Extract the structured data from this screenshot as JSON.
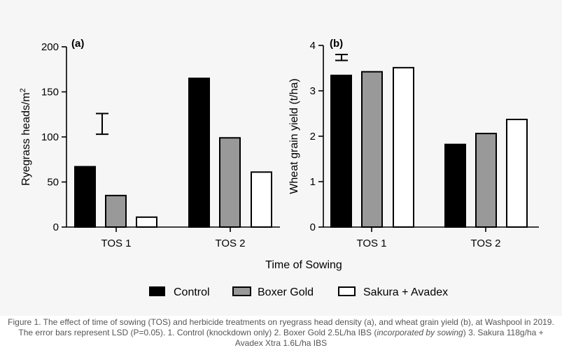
{
  "figure": {
    "colors": {
      "background": "#f6f6f6",
      "control": "#000000",
      "boxer": "#999999",
      "sakura": "#ffffff",
      "stroke": "#000000"
    },
    "xaxis_title": "Time of Sowing",
    "legend": {
      "placement": "bottom-center",
      "items": [
        {
          "label": "Control",
          "color": "#000000"
        },
        {
          "label": "Boxer Gold",
          "color": "#999999"
        },
        {
          "label": "Sakura + Avadex",
          "color": "#ffffff"
        }
      ]
    }
  },
  "chart_data": [
    {
      "type": "bar",
      "panel": "(a)",
      "categories": [
        "TOS 1",
        "TOS 2"
      ],
      "series": [
        {
          "name": "Control",
          "values": [
            67,
            165
          ]
        },
        {
          "name": "Boxer Gold",
          "values": [
            35,
            99
          ]
        },
        {
          "name": "Sakura + Avadex",
          "values": [
            11,
            61
          ]
        }
      ],
      "ylabel": "Ryegrass heads/m",
      "ylabel_superscript": "2",
      "ylim": [
        0,
        200
      ],
      "yticks": [
        0,
        50,
        100,
        150,
        200
      ],
      "error_bar": {
        "category": "TOS 1",
        "low": 103,
        "high": 126
      },
      "grid": false
    },
    {
      "type": "bar",
      "panel": "(b)",
      "categories": [
        "TOS 1",
        "TOS 2"
      ],
      "series": [
        {
          "name": "Control",
          "values": [
            3.34,
            1.82
          ]
        },
        {
          "name": "Boxer Gold",
          "values": [
            3.42,
            2.06
          ]
        },
        {
          "name": "Sakura + Avadex",
          "values": [
            3.51,
            2.37
          ]
        }
      ],
      "ylabel": "Wheat grain yield (t/ha)",
      "ylim": [
        0,
        4
      ],
      "yticks": [
        0,
        1,
        2,
        3,
        4
      ],
      "error_bar": {
        "category": "TOS 1",
        "low": 3.67,
        "high": 3.8
      },
      "grid": false
    }
  ],
  "caption": {
    "part1": "Figure 1. The effect of time of sowing (TOS) and herbicide treatments on ryegrass head density (a), and wheat grain yield (b), at Washpool in 2019. The error bars represent LSD (P=0.05). 1. Control (knockdown only) 2. Boxer Gold 2.5L/ha IBS (",
    "italic": "incorporated by sowing",
    "part2": ") 3. Sakura 118g/ha + Avadex Xtra 1.6L/ha IBS"
  }
}
